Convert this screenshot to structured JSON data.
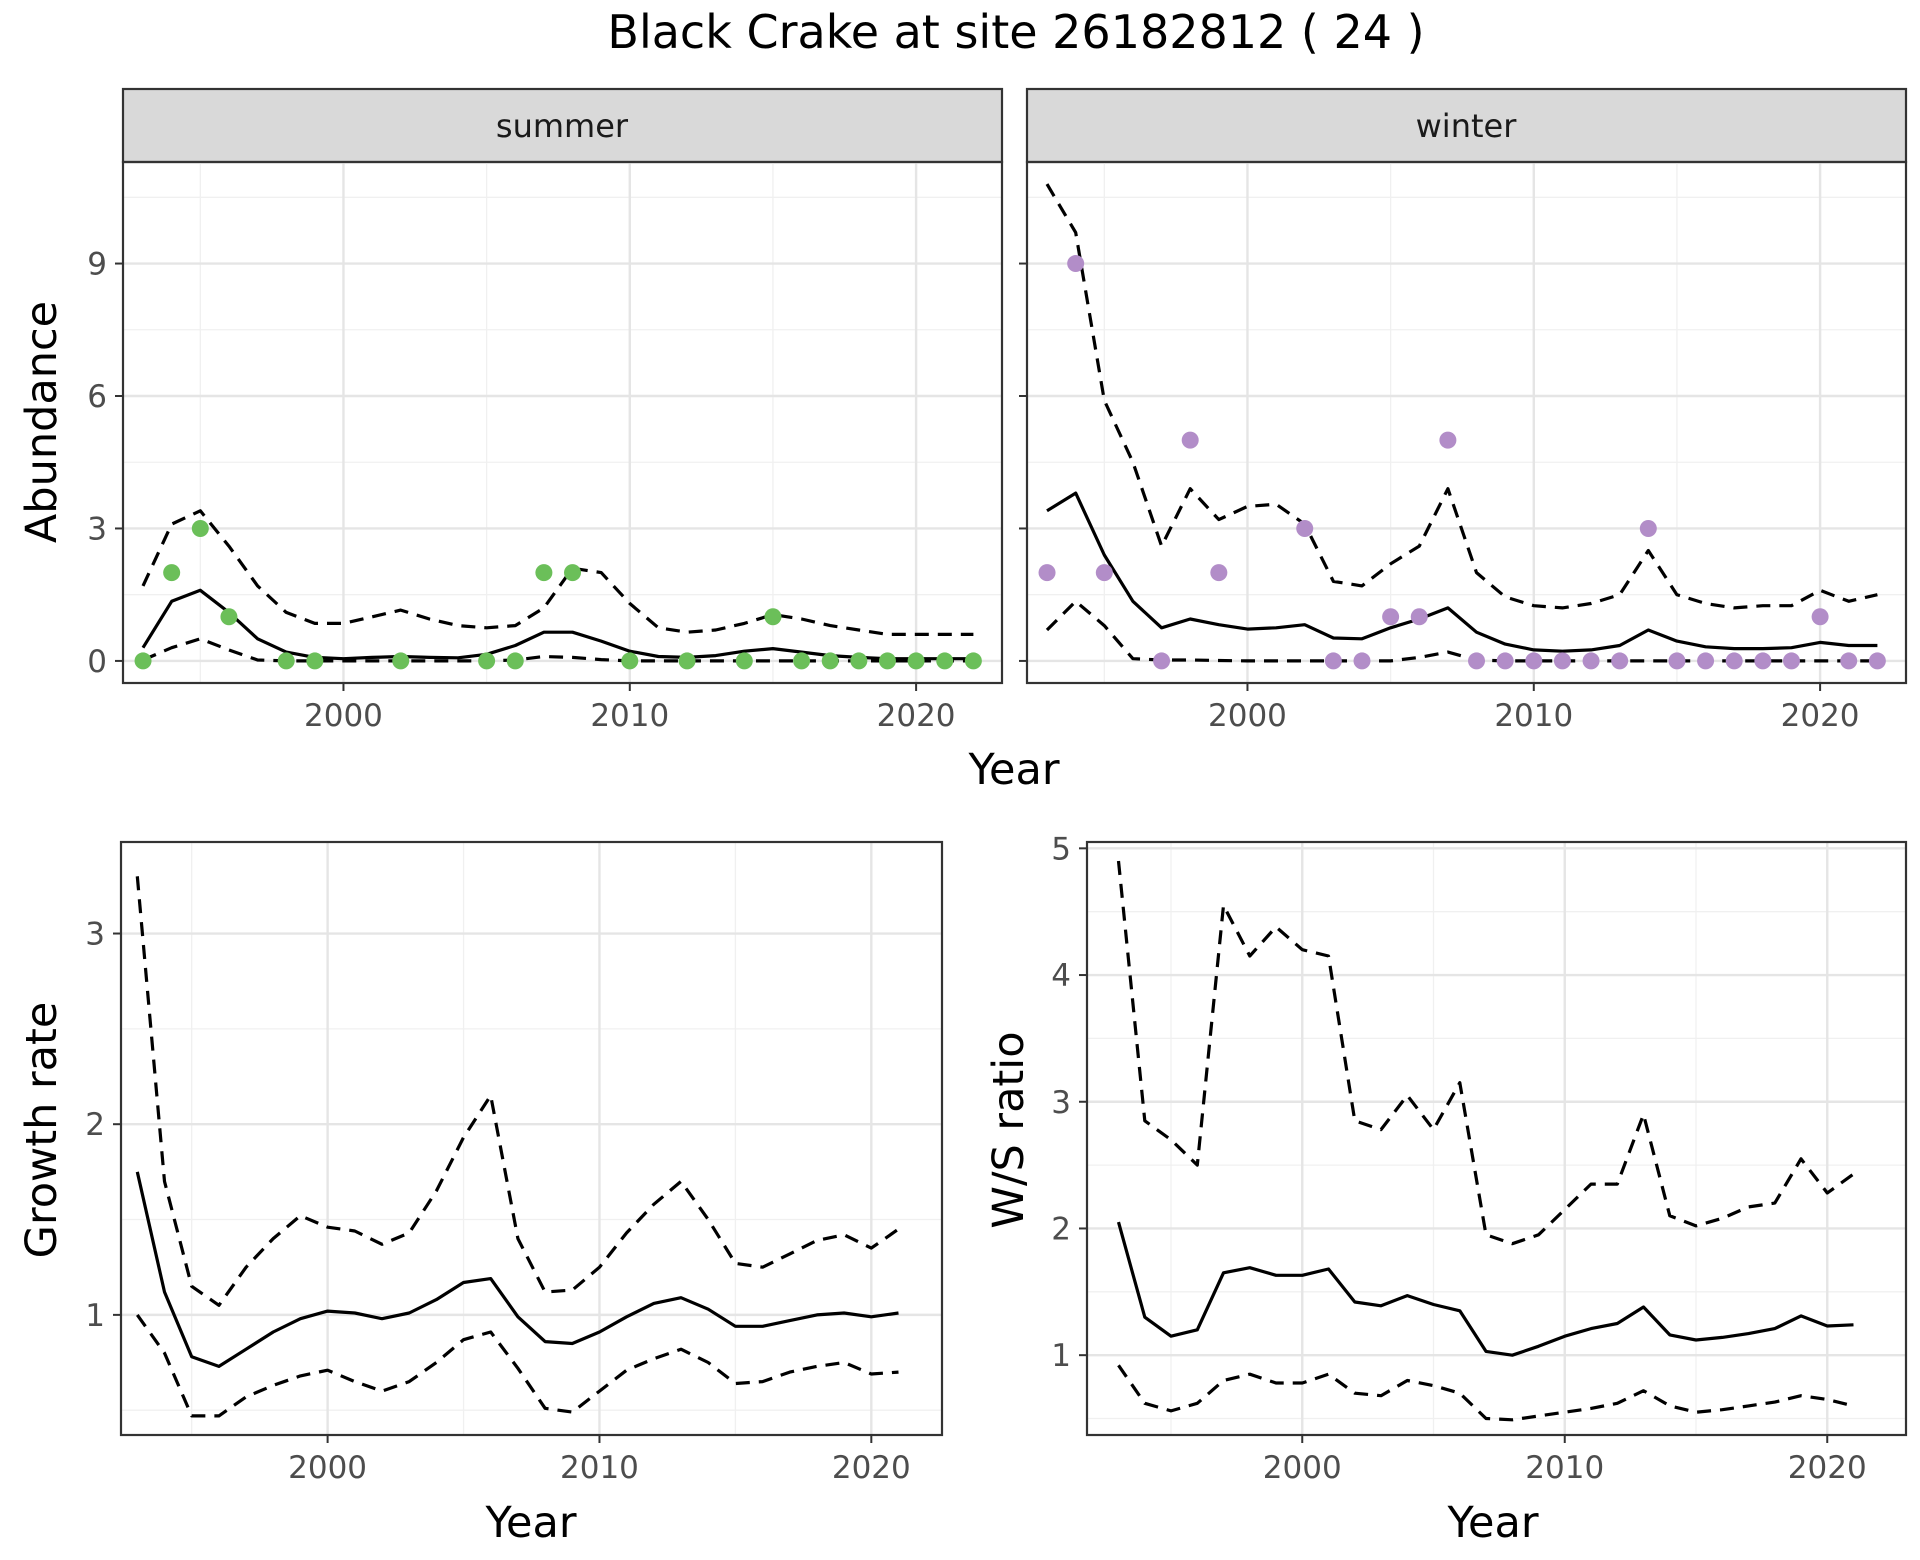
{
  "figure": {
    "title": "Black Crake at site 26182812 ( 24 )",
    "colors": {
      "summer_points": "#6bbf59",
      "winter_points": "#b28dc8",
      "lines": "#000000",
      "strip": "#d9d9d9"
    }
  },
  "chart_data": [
    {
      "type": "line",
      "facet": "summer",
      "strip_label": "summer",
      "xlabel": "Year",
      "ylabel": "Abundance",
      "xlim": [
        1992.3,
        2023
      ],
      "ylim": [
        -0.5,
        11.3
      ],
      "xticks": [
        2000,
        2010,
        2020
      ],
      "yticks": [
        0,
        3,
        6,
        9
      ],
      "point_color": "#6bbf59",
      "series": [
        {
          "kind": "upper",
          "x": [
            1993,
            1994,
            1995,
            1996,
            1997,
            1998,
            1999,
            2000,
            2001,
            2002,
            2003,
            2004,
            2005,
            2006,
            2007,
            2008,
            2009,
            2010,
            2011,
            2012,
            2013,
            2014,
            2015,
            2016,
            2017,
            2018,
            2019,
            2020,
            2021,
            2022
          ],
          "values": [
            1.7,
            3.1,
            3.4,
            2.6,
            1.7,
            1.1,
            0.85,
            0.85,
            1.0,
            1.15,
            0.95,
            0.8,
            0.75,
            0.8,
            1.2,
            2.1,
            2.0,
            1.3,
            0.75,
            0.65,
            0.7,
            0.85,
            1.05,
            0.95,
            0.8,
            0.7,
            0.6,
            0.6,
            0.6,
            0.6
          ]
        },
        {
          "kind": "mean",
          "x": [
            1993,
            1994,
            1995,
            1996,
            1997,
            1998,
            1999,
            2000,
            2001,
            2002,
            2003,
            2004,
            2005,
            2006,
            2007,
            2008,
            2009,
            2010,
            2011,
            2012,
            2013,
            2014,
            2015,
            2016,
            2017,
            2018,
            2019,
            2020,
            2021,
            2022
          ],
          "values": [
            0.3,
            1.35,
            1.6,
            1.1,
            0.5,
            0.2,
            0.08,
            0.05,
            0.08,
            0.1,
            0.08,
            0.07,
            0.15,
            0.35,
            0.65,
            0.65,
            0.45,
            0.22,
            0.1,
            0.08,
            0.12,
            0.22,
            0.28,
            0.2,
            0.12,
            0.08,
            0.05,
            0.05,
            0.05,
            0.05
          ]
        },
        {
          "kind": "lower",
          "x": [
            1993,
            1994,
            1995,
            1996,
            1997,
            1998,
            1999,
            2000,
            2001,
            2002,
            2003,
            2004,
            2005,
            2006,
            2007,
            2008,
            2009,
            2010,
            2011,
            2012,
            2013,
            2014,
            2015,
            2016,
            2017,
            2018,
            2019,
            2020,
            2021,
            2022
          ],
          "values": [
            0.02,
            0.3,
            0.5,
            0.25,
            0.02,
            0.0,
            0.0,
            0.0,
            0.0,
            0.0,
            0.0,
            0.0,
            0.0,
            0.02,
            0.1,
            0.08,
            0.03,
            0.0,
            0.0,
            0.0,
            0.0,
            0.0,
            0.0,
            0.0,
            0.0,
            0.0,
            0.0,
            0.0,
            0.0,
            0.0
          ]
        }
      ],
      "points": {
        "x": [
          1993,
          1994,
          1995,
          1996,
          1998,
          1999,
          2002,
          2005,
          2006,
          2007,
          2008,
          2010,
          2012,
          2014,
          2015,
          2016,
          2017,
          2018,
          2019,
          2020,
          2021,
          2022
        ],
        "y": [
          0,
          2,
          3,
          1,
          0,
          0,
          0,
          0,
          0,
          2,
          2,
          0,
          0,
          0,
          1,
          0,
          0,
          0,
          0,
          0,
          0,
          0
        ]
      }
    },
    {
      "type": "line",
      "facet": "winter",
      "strip_label": "winter",
      "xlabel": "Year",
      "ylabel": "",
      "xlim": [
        1992.3,
        2023
      ],
      "ylim": [
        -0.5,
        11.3
      ],
      "xticks": [
        2000,
        2010,
        2020
      ],
      "yticks": [
        0,
        3,
        6,
        9
      ],
      "point_color": "#b28dc8",
      "series": [
        {
          "kind": "upper",
          "x": [
            1993,
            1994,
            1995,
            1996,
            1997,
            1998,
            1999,
            2000,
            2001,
            2002,
            2003,
            2004,
            2005,
            2006,
            2007,
            2008,
            2009,
            2010,
            2011,
            2012,
            2013,
            2014,
            2015,
            2016,
            2017,
            2018,
            2019,
            2020,
            2021,
            2022
          ],
          "values": [
            10.8,
            9.7,
            5.9,
            4.5,
            2.6,
            3.9,
            3.2,
            3.5,
            3.55,
            3.1,
            1.8,
            1.7,
            2.2,
            2.6,
            3.9,
            2.0,
            1.45,
            1.25,
            1.2,
            1.3,
            1.5,
            2.5,
            1.5,
            1.3,
            1.2,
            1.25,
            1.25,
            1.6,
            1.35,
            1.5
          ]
        },
        {
          "kind": "mean",
          "x": [
            1993,
            1994,
            1995,
            1996,
            1997,
            1998,
            1999,
            2000,
            2001,
            2002,
            2003,
            2004,
            2005,
            2006,
            2007,
            2008,
            2009,
            2010,
            2011,
            2012,
            2013,
            2014,
            2015,
            2016,
            2017,
            2018,
            2019,
            2020,
            2021,
            2022
          ],
          "values": [
            3.4,
            3.8,
            2.4,
            1.35,
            0.75,
            0.95,
            0.82,
            0.72,
            0.75,
            0.82,
            0.52,
            0.5,
            0.75,
            0.95,
            1.2,
            0.65,
            0.38,
            0.25,
            0.22,
            0.25,
            0.35,
            0.7,
            0.45,
            0.32,
            0.28,
            0.28,
            0.3,
            0.42,
            0.35,
            0.35
          ]
        },
        {
          "kind": "lower",
          "x": [
            1993,
            1994,
            1995,
            1996,
            1997,
            1998,
            1999,
            2000,
            2001,
            2002,
            2003,
            2004,
            2005,
            2006,
            2007,
            2008,
            2009,
            2010,
            2011,
            2012,
            2013,
            2014,
            2015,
            2016,
            2017,
            2018,
            2019,
            2020,
            2021,
            2022
          ],
          "values": [
            0.7,
            1.35,
            0.8,
            0.05,
            0.02,
            0.02,
            0.01,
            0.0,
            0.0,
            0.0,
            0.0,
            0.0,
            0.0,
            0.08,
            0.2,
            0.02,
            0.0,
            0.0,
            0.0,
            0.0,
            0.0,
            0.0,
            0.0,
            0.0,
            0.0,
            0.0,
            0.0,
            0.0,
            0.0,
            0.0
          ]
        }
      ],
      "points": {
        "x": [
          1993,
          1994,
          1995,
          1997,
          1998,
          1999,
          2002,
          2003,
          2004,
          2005,
          2006,
          2007,
          2008,
          2009,
          2010,
          2011,
          2012,
          2013,
          2014,
          2015,
          2016,
          2017,
          2018,
          2019,
          2020,
          2021,
          2022
        ],
        "y": [
          2,
          9,
          2,
          0,
          5,
          2,
          3,
          0,
          0,
          1,
          1,
          5,
          0,
          0,
          0,
          0,
          0,
          0,
          3,
          0,
          0,
          0,
          0,
          0,
          1,
          0,
          0
        ]
      }
    },
    {
      "type": "line",
      "facet": "growth",
      "xlabel": "Year",
      "ylabel": "Growth rate",
      "xlim": [
        1992.4,
        2022.6
      ],
      "ylim": [
        0.37,
        3.48
      ],
      "xticks": [
        2000,
        2010,
        2020
      ],
      "yticks": [
        1,
        2,
        3
      ],
      "series": [
        {
          "kind": "upper",
          "x": [
            1993,
            1994,
            1995,
            1996,
            1997,
            1998,
            1999,
            2000,
            2001,
            2002,
            2003,
            2004,
            2005,
            2006,
            2007,
            2008,
            2009,
            2010,
            2011,
            2012,
            2013,
            2014,
            2015,
            2016,
            2017,
            2018,
            2019,
            2020,
            2021
          ],
          "values": [
            3.3,
            1.7,
            1.15,
            1.05,
            1.25,
            1.4,
            1.52,
            1.46,
            1.44,
            1.37,
            1.43,
            1.65,
            1.93,
            2.15,
            1.4,
            1.12,
            1.13,
            1.25,
            1.43,
            1.58,
            1.7,
            1.5,
            1.27,
            1.25,
            1.32,
            1.39,
            1.42,
            1.35,
            1.45
          ]
        },
        {
          "kind": "mean",
          "x": [
            1993,
            1994,
            1995,
            1996,
            1997,
            1998,
            1999,
            2000,
            2001,
            2002,
            2003,
            2004,
            2005,
            2006,
            2007,
            2008,
            2009,
            2010,
            2011,
            2012,
            2013,
            2014,
            2015,
            2016,
            2017,
            2018,
            2019,
            2020,
            2021
          ],
          "values": [
            1.75,
            1.12,
            0.78,
            0.73,
            0.82,
            0.91,
            0.98,
            1.02,
            1.01,
            0.98,
            1.01,
            1.08,
            1.17,
            1.19,
            0.99,
            0.86,
            0.85,
            0.91,
            0.99,
            1.06,
            1.09,
            1.03,
            0.94,
            0.94,
            0.97,
            1.0,
            1.01,
            0.99,
            1.01
          ]
        },
        {
          "kind": "lower",
          "x": [
            1993,
            1994,
            1995,
            1996,
            1997,
            1998,
            1999,
            2000,
            2001,
            2002,
            2003,
            2004,
            2005,
            2006,
            2007,
            2008,
            2009,
            2010,
            2011,
            2012,
            2013,
            2014,
            2015,
            2016,
            2017,
            2018,
            2019,
            2020,
            2021
          ],
          "values": [
            1.0,
            0.8,
            0.47,
            0.47,
            0.57,
            0.63,
            0.68,
            0.71,
            0.65,
            0.6,
            0.65,
            0.75,
            0.87,
            0.91,
            0.72,
            0.51,
            0.49,
            0.6,
            0.71,
            0.77,
            0.82,
            0.75,
            0.64,
            0.65,
            0.7,
            0.73,
            0.75,
            0.69,
            0.7
          ]
        }
      ]
    },
    {
      "type": "line",
      "facet": "ws-ratio",
      "xlabel": "Year",
      "ylabel": "W/S ratio",
      "xlim": [
        1991.8,
        2023.0
      ],
      "ylim": [
        0.37,
        5.05
      ],
      "xticks": [
        2000,
        2010,
        2020
      ],
      "yticks": [
        1,
        2,
        3,
        4,
        5
      ],
      "series": [
        {
          "kind": "upper",
          "x": [
            1993,
            1994,
            1995,
            1996,
            1997,
            1998,
            1999,
            2000,
            2001,
            2002,
            2003,
            2004,
            2005,
            2006,
            2007,
            2008,
            2009,
            2010,
            2011,
            2012,
            2013,
            2014,
            2015,
            2016,
            2017,
            2018,
            2019,
            2020,
            2021
          ],
          "values": [
            4.9,
            2.85,
            2.7,
            2.5,
            4.55,
            4.15,
            4.38,
            4.2,
            4.15,
            2.85,
            2.78,
            3.05,
            2.78,
            3.15,
            1.95,
            1.88,
            1.95,
            2.15,
            2.35,
            2.35,
            2.9,
            2.1,
            2.02,
            2.08,
            2.17,
            2.2,
            2.55,
            2.28,
            2.43
          ]
        },
        {
          "kind": "mean",
          "x": [
            1993,
            1994,
            1995,
            1996,
            1997,
            1998,
            1999,
            2000,
            2001,
            2002,
            2003,
            2004,
            2005,
            2006,
            2007,
            2008,
            2009,
            2010,
            2011,
            2012,
            2013,
            2014,
            2015,
            2016,
            2017,
            2018,
            2019,
            2020,
            2021
          ],
          "values": [
            2.05,
            1.3,
            1.15,
            1.2,
            1.65,
            1.69,
            1.63,
            1.63,
            1.68,
            1.42,
            1.39,
            1.47,
            1.4,
            1.35,
            1.03,
            1.0,
            1.07,
            1.15,
            1.21,
            1.25,
            1.38,
            1.16,
            1.12,
            1.14,
            1.17,
            1.21,
            1.31,
            1.23,
            1.24
          ]
        },
        {
          "kind": "lower",
          "x": [
            1993,
            1994,
            1995,
            1996,
            1997,
            1998,
            1999,
            2000,
            2001,
            2002,
            2003,
            2004,
            2005,
            2006,
            2007,
            2008,
            2009,
            2010,
            2011,
            2012,
            2013,
            2014,
            2015,
            2016,
            2017,
            2018,
            2019,
            2020,
            2021
          ],
          "values": [
            0.92,
            0.62,
            0.56,
            0.62,
            0.8,
            0.85,
            0.78,
            0.78,
            0.85,
            0.7,
            0.68,
            0.8,
            0.76,
            0.7,
            0.5,
            0.49,
            0.52,
            0.55,
            0.58,
            0.62,
            0.72,
            0.6,
            0.55,
            0.57,
            0.6,
            0.63,
            0.68,
            0.65,
            0.6
          ]
        }
      ]
    }
  ]
}
